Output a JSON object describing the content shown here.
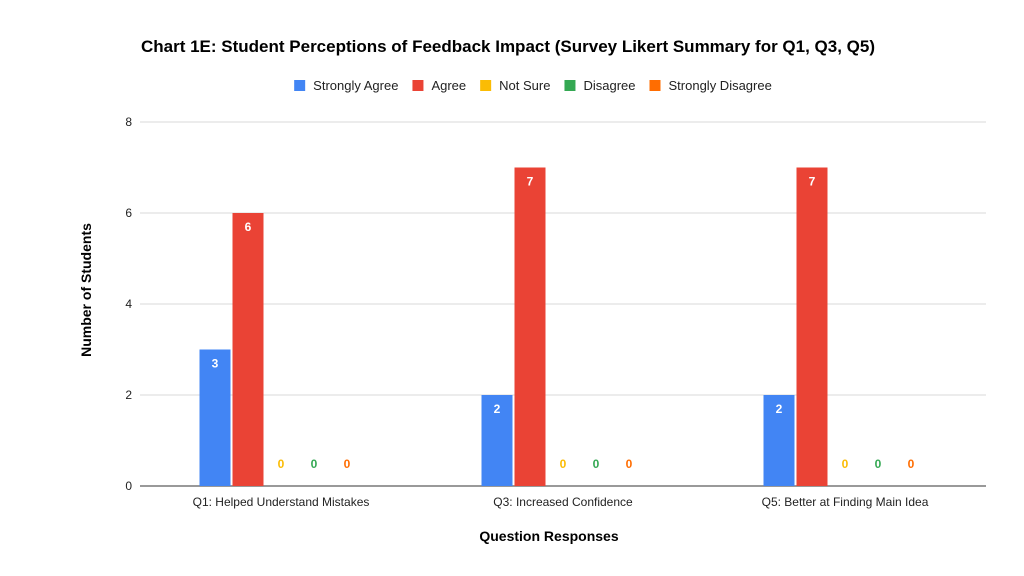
{
  "chart_data": {
    "type": "bar",
    "title": "Chart 1E: Student Perceptions of Feedback Impact (Survey Likert Summary for Q1, Q3, Q5)",
    "xlabel": "Question Responses",
    "ylabel": "Number of Students",
    "categories": [
      "Q1: Helped Understand Mistakes",
      "Q3: Increased Confidence",
      "Q5: Better at Finding Main Idea"
    ],
    "ylim": [
      0,
      8
    ],
    "yticks": [
      0,
      2,
      4,
      6,
      8
    ],
    "grid": true,
    "legend_position": "top",
    "series": [
      {
        "name": "Strongly Agree",
        "color": "#4285f4",
        "values": [
          3,
          2,
          2
        ]
      },
      {
        "name": "Agree",
        "color": "#ea4335",
        "values": [
          6,
          7,
          7
        ]
      },
      {
        "name": "Not Sure",
        "color": "#fbbc04",
        "values": [
          0,
          0,
          0
        ]
      },
      {
        "name": "Disagree",
        "color": "#34a853",
        "values": [
          0,
          0,
          0
        ]
      },
      {
        "name": "Strongly Disagree",
        "color": "#ff6d01",
        "values": [
          0,
          0,
          0
        ]
      }
    ]
  }
}
